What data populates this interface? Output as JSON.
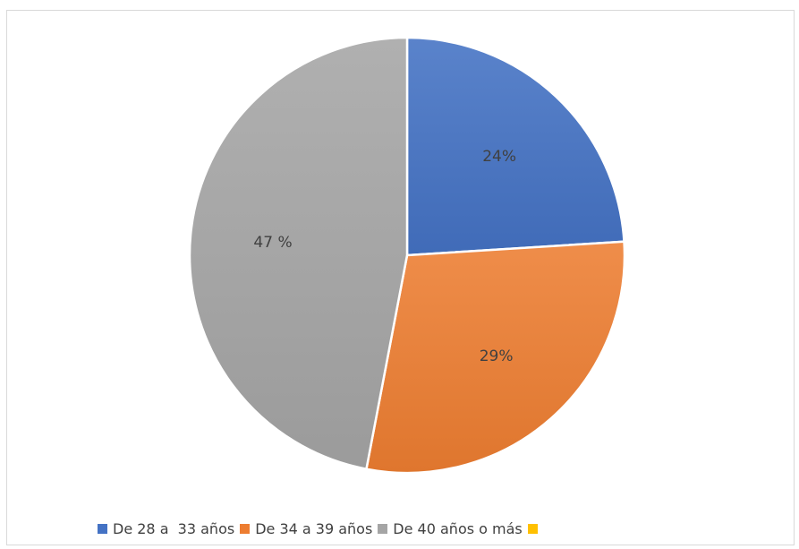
{
  "chart_data": {
    "type": "pie",
    "title": "",
    "categories": [
      "De 28 a  33 años",
      "De 34 a 39 años",
      "De 40 años o más",
      ""
    ],
    "values": [
      24,
      29,
      47,
      0
    ],
    "value_labels": [
      "24%",
      "29%",
      "47 %",
      ""
    ],
    "colors": [
      "#4472C4",
      "#ED7D31",
      "#A5A5A5",
      "#FFC000"
    ],
    "legend_position": "bottom",
    "start_angle_deg": 0,
    "direction": "clockwise"
  }
}
